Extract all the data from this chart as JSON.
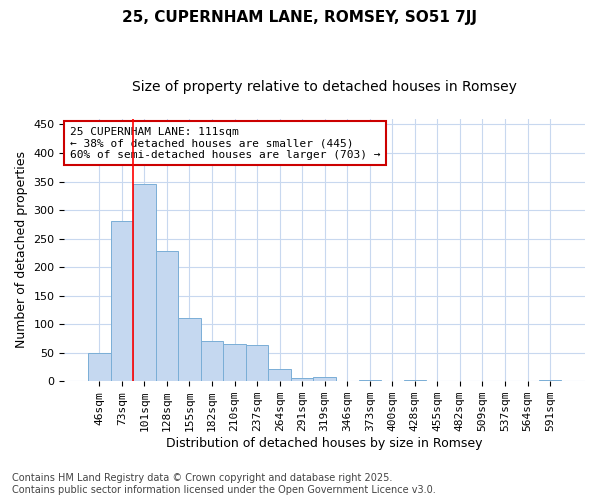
{
  "title1": "25, CUPERNHAM LANE, ROMSEY, SO51 7JJ",
  "title2": "Size of property relative to detached houses in Romsey",
  "xlabel": "Distribution of detached houses by size in Romsey",
  "ylabel": "Number of detached properties",
  "categories": [
    "46sqm",
    "73sqm",
    "101sqm",
    "128sqm",
    "155sqm",
    "182sqm",
    "210sqm",
    "237sqm",
    "264sqm",
    "291sqm",
    "319sqm",
    "346sqm",
    "373sqm",
    "400sqm",
    "428sqm",
    "455sqm",
    "482sqm",
    "509sqm",
    "537sqm",
    "564sqm",
    "591sqm"
  ],
  "values": [
    50,
    280,
    345,
    228,
    110,
    70,
    65,
    63,
    22,
    5,
    7,
    0,
    2,
    0,
    2,
    0,
    0,
    0,
    0,
    0,
    2
  ],
  "bar_color": "#c5d8f0",
  "bar_edge_color": "#7aaed6",
  "red_line_index": 2,
  "annotation_text": "25 CUPERNHAM LANE: 111sqm\n← 38% of detached houses are smaller (445)\n60% of semi-detached houses are larger (703) →",
  "annotation_box_facecolor": "#ffffff",
  "annotation_box_edgecolor": "#cc0000",
  "ylim": [
    0,
    460
  ],
  "yticks": [
    0,
    50,
    100,
    150,
    200,
    250,
    300,
    350,
    400,
    450
  ],
  "footer": "Contains HM Land Registry data © Crown copyright and database right 2025.\nContains public sector information licensed under the Open Government Licence v3.0.",
  "fig_facecolor": "#ffffff",
  "plot_facecolor": "#ffffff",
  "grid_color": "#c8d8ef",
  "title1_fontsize": 11,
  "title2_fontsize": 10,
  "tick_fontsize": 8,
  "xlabel_fontsize": 9,
  "ylabel_fontsize": 9,
  "annotation_fontsize": 8,
  "footer_fontsize": 7
}
